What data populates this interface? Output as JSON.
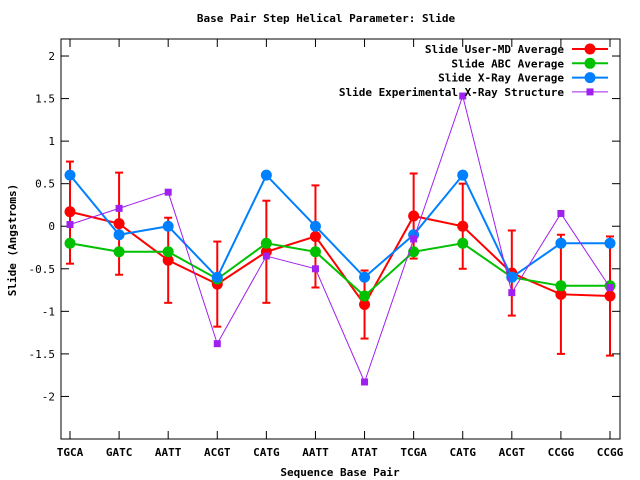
{
  "chart_data": {
    "type": "line",
    "title": "Base Pair Step Helical Parameter: Slide",
    "xlabel": "Sequence Base Pair",
    "ylabel": "Slide (Angstroms)",
    "categories": [
      "TGCA",
      "GATC",
      "AATT",
      "ACGT",
      "CATG",
      "AATT",
      "ATAT",
      "TCGA",
      "CATG",
      "ACGT",
      "CCGG",
      "CCGG"
    ],
    "ylim": [
      -2.5,
      2.2
    ],
    "yticks": [
      -2,
      -1.5,
      -1,
      -0.5,
      0,
      0.5,
      1,
      1.5,
      2
    ],
    "ytick_labels": [
      "-2",
      "-1.5",
      "-1",
      "-0.5",
      "0",
      "0.5",
      "1",
      "1.5",
      "2"
    ],
    "grid": false,
    "legend_position": "top-right",
    "series": [
      {
        "name": "Slide User-MD Average",
        "color": "#ff0000",
        "marker": "circle",
        "values": [
          0.17,
          0.03,
          -0.4,
          -0.68,
          -0.3,
          -0.12,
          -0.92,
          0.12,
          0.0,
          -0.55,
          -0.8,
          -0.82
        ],
        "err_low": [
          -0.44,
          -0.57,
          -0.9,
          -1.18,
          -0.9,
          -0.72,
          -1.32,
          -0.38,
          -0.5,
          -1.05,
          -1.5,
          -1.52
        ],
        "err_high": [
          0.76,
          0.63,
          0.1,
          -0.18,
          0.3,
          0.48,
          -0.52,
          0.62,
          0.5,
          -0.05,
          -0.1,
          -0.12
        ]
      },
      {
        "name": "Slide ABC Average",
        "color": "#00c000",
        "marker": "circle",
        "values": [
          -0.2,
          -0.3,
          -0.3,
          -0.62,
          -0.2,
          -0.3,
          -0.82,
          -0.3,
          -0.2,
          -0.6,
          -0.7,
          -0.7
        ]
      },
      {
        "name": "Slide X-Ray Average",
        "color": "#0080ff",
        "marker": "circle",
        "values": [
          0.6,
          -0.1,
          0.0,
          -0.6,
          0.6,
          0.0,
          -0.6,
          -0.1,
          0.6,
          -0.6,
          -0.2,
          -0.2
        ]
      },
      {
        "name": "Slide Experimental X-Ray Structure",
        "color": "#a020f0",
        "marker": "square",
        "values": [
          0.02,
          0.21,
          0.4,
          -1.38,
          -0.35,
          -0.5,
          -1.83,
          -0.15,
          1.53,
          -0.78,
          0.15,
          -0.72
        ]
      }
    ]
  }
}
